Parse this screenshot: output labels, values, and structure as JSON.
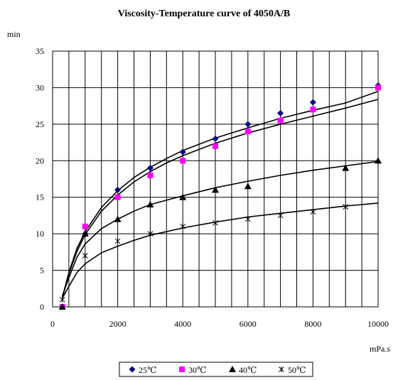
{
  "chart_data": {
    "type": "scatter",
    "title": "Viscosity-Temperature curve of 4050A/B",
    "ylabel": "min",
    "xlabel": "mPa.s",
    "xlim": [
      0,
      10000
    ],
    "ylim": [
      0,
      35
    ],
    "xticks": [
      "0",
      "2000",
      "4000",
      "6000",
      "8000",
      "10000"
    ],
    "yticks": [
      "0",
      "5",
      "10",
      "15",
      "20",
      "25",
      "30",
      "35"
    ],
    "grid": true,
    "legend_position": "bottom",
    "series": [
      {
        "name": "25℃",
        "marker": "diamond",
        "color": "#000080",
        "x": [
          300,
          1000,
          2000,
          3000,
          4000,
          5000,
          6000,
          7000,
          8000,
          10000
        ],
        "y": [
          0,
          10,
          16,
          19,
          21.2,
          23,
          25,
          26.5,
          28,
          30.3
        ],
        "trend": [
          [
            300,
            1.3
          ],
          [
            500,
            4.7
          ],
          [
            750,
            8.0
          ],
          [
            1000,
            10.3
          ],
          [
            1500,
            13.6
          ],
          [
            2000,
            15.9
          ],
          [
            2500,
            17.7
          ],
          [
            3000,
            19.1
          ],
          [
            3500,
            20.3
          ],
          [
            4000,
            21.4
          ],
          [
            5000,
            23.1
          ],
          [
            6000,
            24.5
          ],
          [
            7000,
            25.8
          ],
          [
            8000,
            26.9
          ],
          [
            9000,
            27.9
          ],
          [
            10000,
            29.5
          ]
        ]
      },
      {
        "name": "30℃",
        "marker": "square",
        "color": "#ff00ff",
        "x": [
          300,
          1000,
          2000,
          3000,
          4000,
          5000,
          6000,
          7000,
          8000,
          10000
        ],
        "y": [
          0,
          11,
          15,
          18,
          20,
          22,
          24,
          25.5,
          27,
          30
        ],
        "trend": [
          [
            300,
            1.2
          ],
          [
            500,
            4.5
          ],
          [
            750,
            7.6
          ],
          [
            1000,
            9.9
          ],
          [
            1500,
            13.1
          ],
          [
            2000,
            15.3
          ],
          [
            2500,
            17.1
          ],
          [
            3000,
            18.5
          ],
          [
            3500,
            19.7
          ],
          [
            4000,
            20.7
          ],
          [
            5000,
            22.4
          ],
          [
            6000,
            23.8
          ],
          [
            7000,
            25.0
          ],
          [
            8000,
            26.1
          ],
          [
            9000,
            27.2
          ],
          [
            10000,
            28.4
          ]
        ]
      },
      {
        "name": "40℃",
        "marker": "triangle",
        "color": "#000000",
        "x": [
          300,
          1000,
          2000,
          3000,
          4000,
          5000,
          6000,
          9000,
          10000
        ],
        "y": [
          0,
          10,
          12,
          14,
          15,
          16,
          16.5,
          19,
          20
        ],
        "trend": [
          [
            300,
            1.5
          ],
          [
            500,
            4.0
          ],
          [
            750,
            6.8
          ],
          [
            1000,
            8.6
          ],
          [
            1500,
            10.7
          ],
          [
            2000,
            12.0
          ],
          [
            2500,
            13.1
          ],
          [
            3000,
            14.0
          ],
          [
            4000,
            15.2
          ],
          [
            5000,
            16.3
          ],
          [
            6000,
            17.2
          ],
          [
            7000,
            18.0
          ],
          [
            8000,
            18.7
          ],
          [
            9000,
            19.3
          ],
          [
            10000,
            19.9
          ]
        ]
      },
      {
        "name": "50℃",
        "marker": "star",
        "color": "#000000",
        "x": [
          300,
          1000,
          2000,
          3000,
          4000,
          5000,
          6000,
          7000,
          8000,
          9000
        ],
        "y": [
          1,
          7,
          9,
          10,
          11,
          11.5,
          12,
          12.5,
          13,
          13.7
        ],
        "trend": [
          [
            300,
            1.2
          ],
          [
            500,
            2.8
          ],
          [
            750,
            4.7
          ],
          [
            1000,
            5.9
          ],
          [
            1500,
            7.4
          ],
          [
            2000,
            8.3
          ],
          [
            2500,
            9.1
          ],
          [
            3000,
            9.8
          ],
          [
            4000,
            10.8
          ],
          [
            5000,
            11.6
          ],
          [
            6000,
            12.3
          ],
          [
            7000,
            12.8
          ],
          [
            8000,
            13.3
          ],
          [
            9000,
            13.8
          ],
          [
            10000,
            14.2
          ]
        ]
      }
    ]
  }
}
